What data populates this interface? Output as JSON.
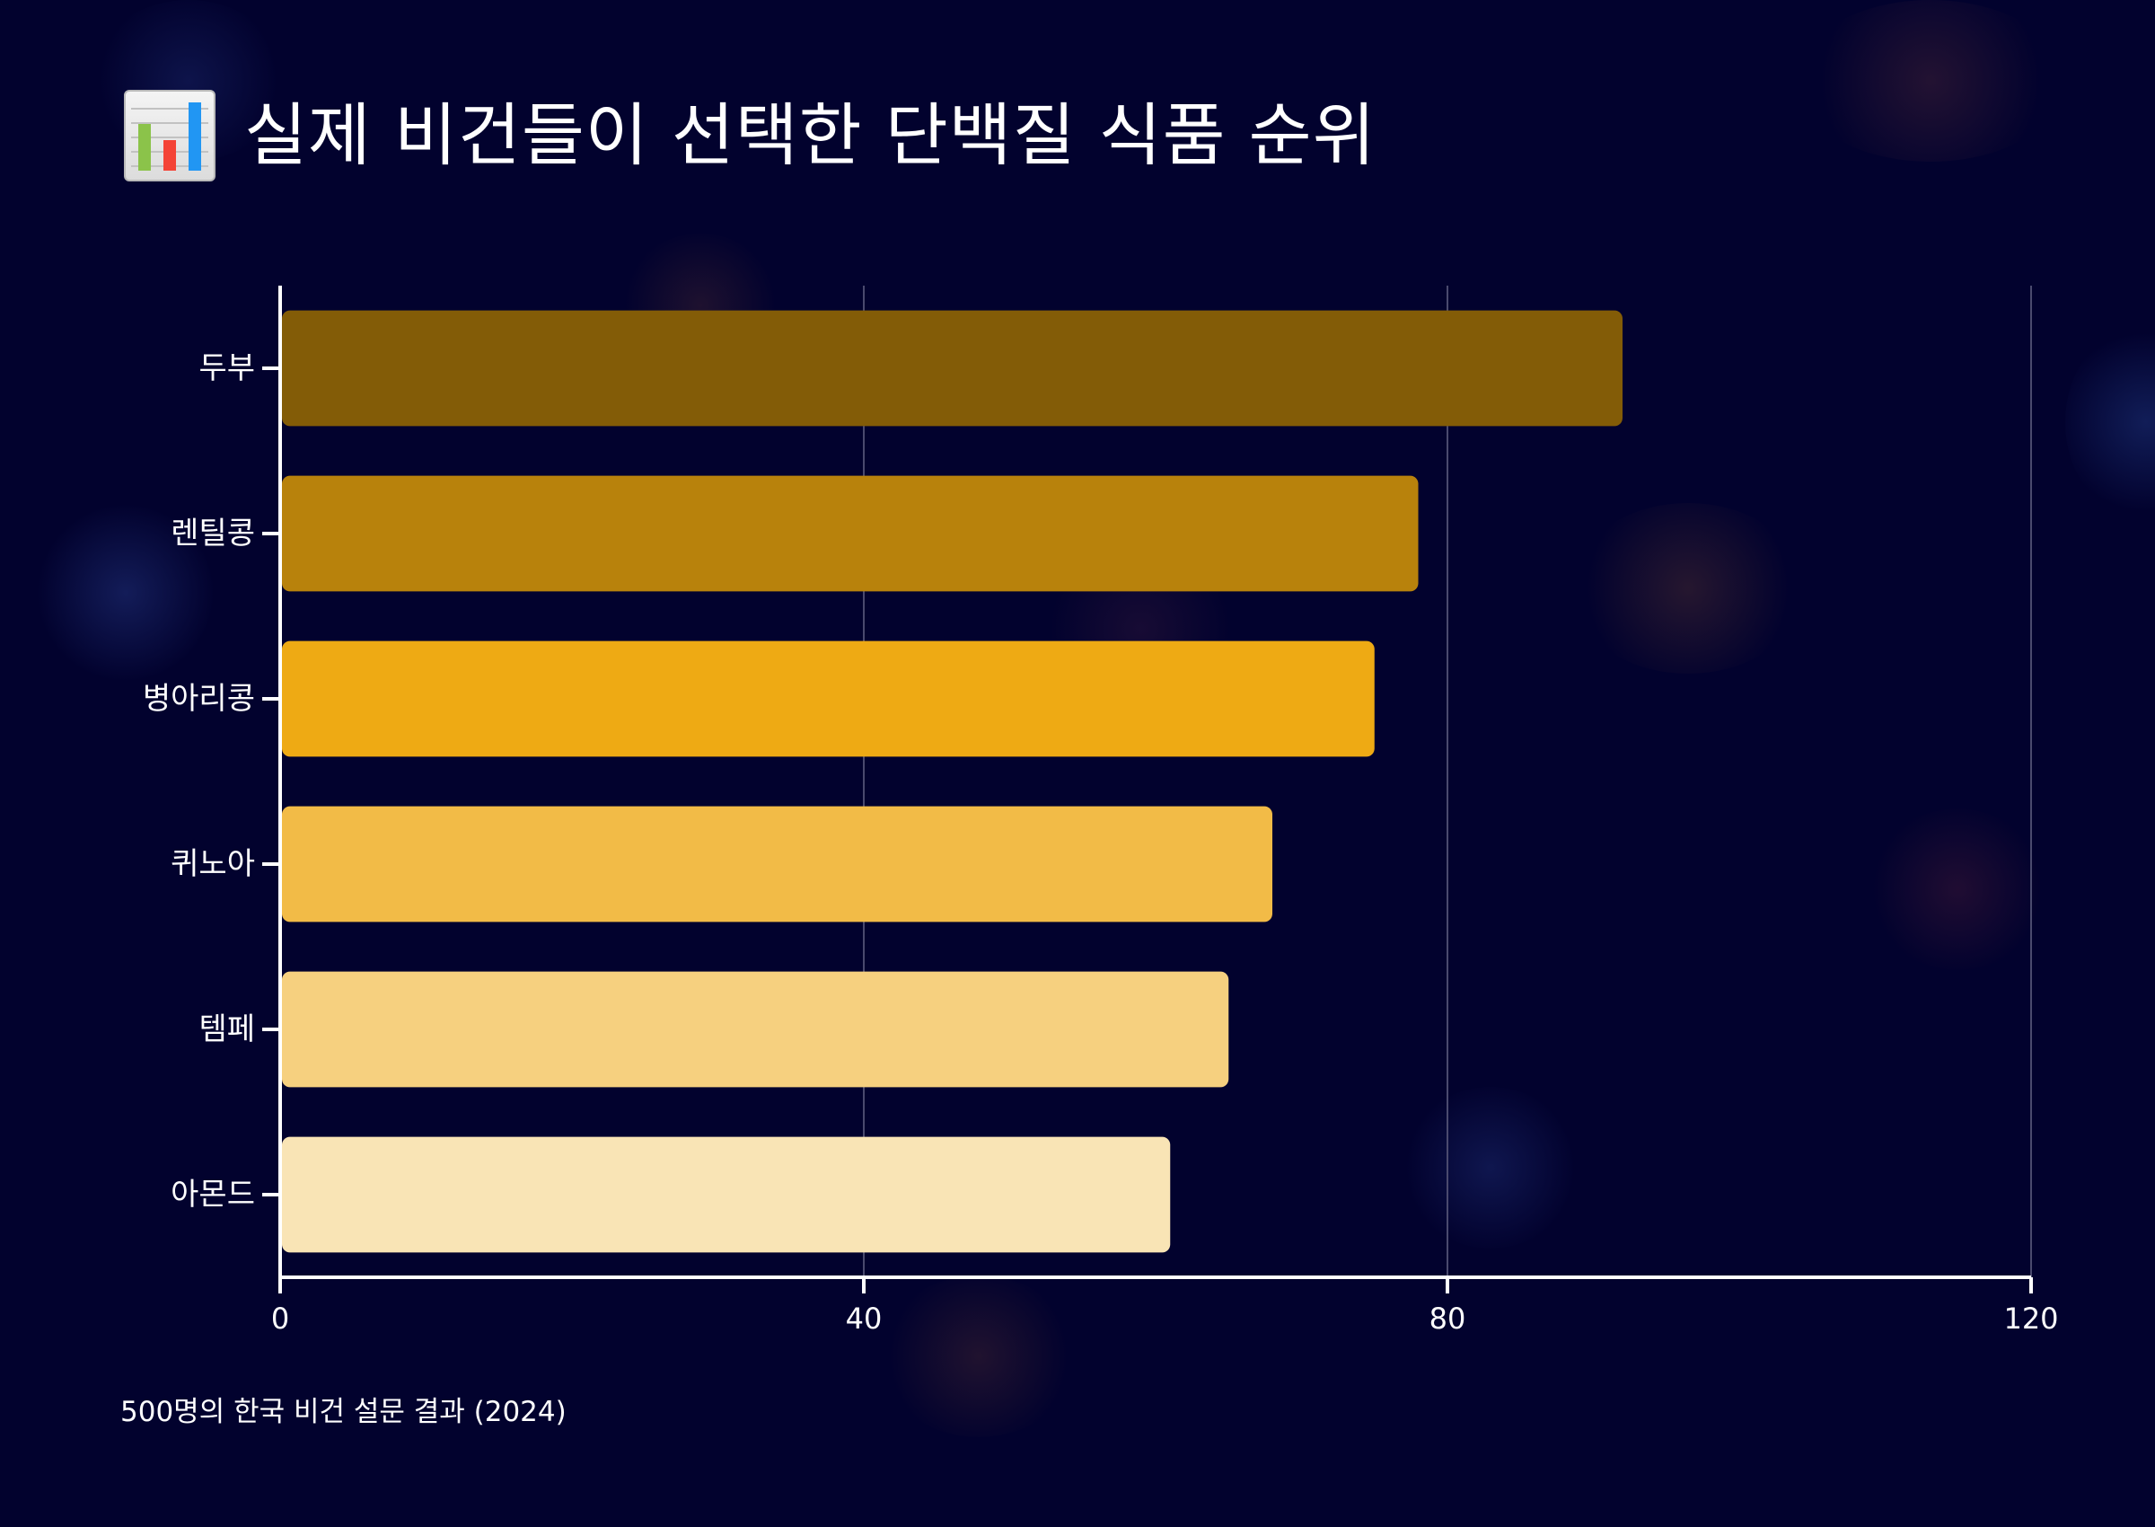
{
  "header": {
    "title": "실제 비건들이 선택한 단백질 식품 순위",
    "icon": "bar-chart-icon"
  },
  "footnote": "500명의 한국 비건 설문 결과 (2024)",
  "colors": {
    "background": "#02022e",
    "axis": "#ffffff",
    "grid": "#4a4a6e",
    "bars": [
      "#835c07",
      "#b8820c",
      "#eeaa14",
      "#f2bb47",
      "#f6d07f",
      "#f9e4b5"
    ]
  },
  "chart_data": {
    "type": "bar",
    "orientation": "horizontal",
    "title": "실제 비건들이 선택한 단백질 식품 순위",
    "categories": [
      "두부",
      "렌틸콩",
      "병아리콩",
      "퀴노아",
      "템페",
      "아몬드"
    ],
    "values": [
      92,
      78,
      75,
      68,
      65,
      61
    ],
    "xlabel": "",
    "ylabel": "",
    "xlim": [
      0,
      120
    ],
    "xticks": [
      0,
      40,
      80,
      120
    ],
    "grid": "vertical",
    "legend": "none"
  }
}
